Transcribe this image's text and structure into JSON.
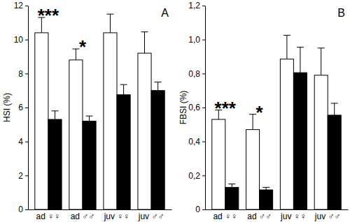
{
  "chart_data": [
    {
      "type": "bar",
      "title": "A",
      "y_label": "HSI (%)",
      "categories": [
        "ad ♀♀",
        "ad ♂♂",
        "juv ♀♀",
        "juv ♂♂"
      ],
      "series": [
        {
          "color": "#ffffff",
          "values": [
            10.4,
            8.8,
            10.4,
            9.2
          ],
          "errors": [
            0.9,
            0.65,
            1.1,
            1.25
          ]
        },
        {
          "color": "#000000",
          "values": [
            5.3,
            5.2,
            6.75,
            7.0
          ],
          "errors": [
            0.5,
            0.3,
            0.6,
            0.5
          ]
        }
      ],
      "ylim": [
        0,
        12
      ],
      "yticks": [
        0,
        2,
        4,
        6,
        8,
        10,
        12
      ],
      "grid": false,
      "annotations": [
        {
          "text": "***",
          "x": "ad ♀♀"
        },
        {
          "text": "*",
          "x": "ad ♂♂"
        }
      ]
    },
    {
      "type": "bar",
      "title": "B",
      "y_label": "FBSI (%)",
      "categories": [
        "ad ♀♀",
        "ad ♂♂",
        "juv ♀♀",
        "juv ♂♂"
      ],
      "series": [
        {
          "color": "#ffffff",
          "values": [
            0.53,
            0.47,
            0.885,
            0.79
          ],
          "errors": [
            0.055,
            0.09,
            0.14,
            0.16
          ]
        },
        {
          "color": "#000000",
          "values": [
            0.13,
            0.115,
            0.805,
            0.555
          ],
          "errors": [
            0.02,
            0.015,
            0.15,
            0.07
          ]
        }
      ],
      "ylim": [
        0,
        1.2
      ],
      "yticks": [
        0,
        {
          "value": 0.2,
          "label": "0,2"
        },
        {
          "value": 0.4,
          "label": "0,4"
        },
        {
          "value": 0.6,
          "label": "0,6"
        },
        {
          "value": 0.8,
          "label": "0,8"
        },
        {
          "value": 1.0,
          "label": "1,0"
        },
        {
          "value": 1.2,
          "label": "1,2"
        }
      ],
      "grid": false,
      "annotations": [
        {
          "text": "***",
          "x": "ad ♀♀"
        },
        {
          "text": "*",
          "x": "ad ♂♂"
        }
      ]
    }
  ]
}
